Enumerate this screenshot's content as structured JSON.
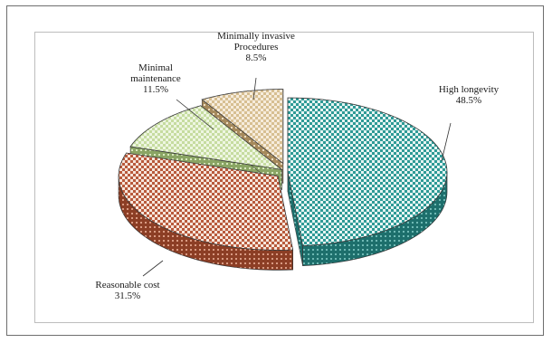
{
  "chart_data": {
    "type": "pie",
    "title": "",
    "style": "3d-exploded",
    "slices": [
      {
        "label_lines": [
          "High longevity"
        ],
        "label": "High longevity",
        "value": 48.5,
        "value_text": "48.5%",
        "color": "#2e9a96"
      },
      {
        "label_lines": [
          "Reasonable cost"
        ],
        "label": "Reasonable cost",
        "value": 31.5,
        "value_text": "31.5%",
        "color": "#b85a3c"
      },
      {
        "label_lines": [
          "Minimal",
          "maintenance"
        ],
        "label": "Minimal maintenance",
        "value": 11.5,
        "value_text": "11.5%",
        "color": "#c6dca0"
      },
      {
        "label_lines": [
          "Minimally invasive",
          "Procedures"
        ],
        "label": "Minimally invasive Procedures",
        "value": 8.5,
        "value_text": "8.5%",
        "color": "#dcc49a"
      }
    ]
  }
}
